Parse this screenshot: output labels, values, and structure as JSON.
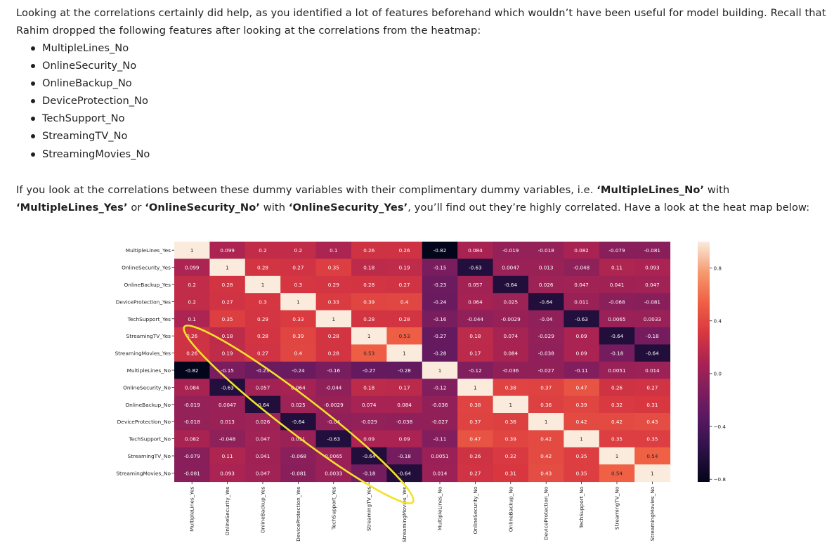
{
  "intro": {
    "text": "Looking at the correlations certainly did help, as you identified a lot of features beforehand which wouldn’t have been useful for model building. Recall that Rahim dropped the following features after looking at the correlations from the heatmap:"
  },
  "dropped_features": [
    "MultipleLines_No",
    "OnlineSecurity_No",
    "OnlineBackup_No",
    "DeviceProtection_No",
    "TechSupport_No",
    "StreamingTV_No",
    "StreamingMovies_No"
  ],
  "paragraph2": {
    "t1": "If you look at the correlations between these dummy variables with their complimentary dummy variables, i.e. ",
    "b1": "‘MultipleLines_No’",
    "t2": " with ",
    "b2": "‘MultipleLines_Yes’",
    "t3": " or ",
    "b3": "‘OnlineSecurity_No’",
    "t4": " with ",
    "b4": "‘OnlineSecurity_Yes’",
    "t5": ", you’ll find out they’re highly correlated. Have a look at the heat map below:"
  },
  "colors": {
    "annotation_circle": "#f2e22a",
    "text": "#1f1f1f"
  },
  "chart_data": {
    "type": "heatmap",
    "labels": [
      "MultipleLines_Yes",
      "OnlineSecurity_Yes",
      "OnlineBackup_Yes",
      "DeviceProtection_Yes",
      "TechSupport_Yes",
      "StreamingTV_Yes",
      "StreamingMovies_Yes",
      "MultipleLines_No",
      "OnlineSecurity_No",
      "OnlineBackup_No",
      "DeviceProtection_No",
      "TechSupport_No",
      "StreamingTV_No",
      "StreamingMovies_No"
    ],
    "matrix": [
      [
        1,
        0.099,
        0.2,
        0.2,
        0.1,
        0.26,
        0.26,
        -0.82,
        0.084,
        -0.019,
        -0.018,
        0.082,
        -0.079,
        -0.081
      ],
      [
        0.099,
        1,
        0.28,
        0.27,
        0.35,
        0.18,
        0.19,
        -0.15,
        -0.63,
        0.0047,
        0.013,
        -0.048,
        0.11,
        0.093
      ],
      [
        0.2,
        0.28,
        1,
        0.3,
        0.29,
        0.28,
        0.27,
        -0.23,
        0.057,
        -0.64,
        0.026,
        0.047,
        0.041,
        0.047
      ],
      [
        0.2,
        0.27,
        0.3,
        1,
        0.33,
        0.39,
        0.4,
        -0.24,
        0.064,
        0.025,
        -0.64,
        0.011,
        -0.068,
        -0.081
      ],
      [
        0.1,
        0.35,
        0.29,
        0.33,
        1,
        0.28,
        0.28,
        -0.16,
        -0.044,
        -0.0029,
        -0.04,
        -0.63,
        0.0065,
        0.0033
      ],
      [
        0.26,
        0.18,
        0.28,
        0.39,
        0.28,
        1,
        0.53,
        -0.27,
        0.18,
        0.074,
        -0.029,
        0.09,
        -0.64,
        -0.18
      ],
      [
        0.26,
        0.19,
        0.27,
        0.4,
        0.28,
        0.53,
        1,
        -0.28,
        0.17,
        0.084,
        -0.038,
        0.09,
        -0.18,
        -0.64
      ],
      [
        -0.82,
        -0.15,
        -0.23,
        -0.24,
        -0.16,
        -0.27,
        -0.28,
        1,
        -0.12,
        -0.036,
        -0.027,
        -0.11,
        0.0051,
        0.014
      ],
      [
        0.084,
        -0.63,
        0.057,
        0.064,
        -0.044,
        0.18,
        0.17,
        -0.12,
        1,
        0.38,
        0.37,
        0.47,
        0.26,
        0.27
      ],
      [
        -0.019,
        0.0047,
        -0.64,
        0.025,
        -0.0029,
        0.074,
        0.084,
        -0.036,
        0.38,
        1,
        0.36,
        0.39,
        0.32,
        0.31
      ],
      [
        -0.018,
        0.013,
        0.026,
        -0.64,
        -0.04,
        -0.029,
        -0.038,
        -0.027,
        0.37,
        0.36,
        1,
        0.42,
        0.42,
        0.43
      ],
      [
        0.082,
        -0.048,
        0.047,
        0.011,
        -0.63,
        0.09,
        0.09,
        -0.11,
        0.47,
        0.39,
        0.42,
        1,
        0.35,
        0.35
      ],
      [
        -0.079,
        0.11,
        0.041,
        -0.068,
        0.0065,
        -0.64,
        -0.18,
        0.0051,
        0.26,
        0.32,
        0.42,
        0.35,
        1,
        0.54
      ],
      [
        -0.081,
        0.093,
        0.047,
        -0.081,
        0.0033,
        -0.18,
        -0.64,
        0.014,
        0.27,
        0.31,
        0.43,
        0.35,
        0.54,
        1
      ]
    ],
    "colorbar": {
      "ticks": [
        "0.8",
        "0.4",
        "0.0",
        "−0.4",
        "−0.8"
      ],
      "range": [
        -0.82,
        1
      ]
    },
    "title": "",
    "xlabel": "",
    "ylabel": ""
  }
}
